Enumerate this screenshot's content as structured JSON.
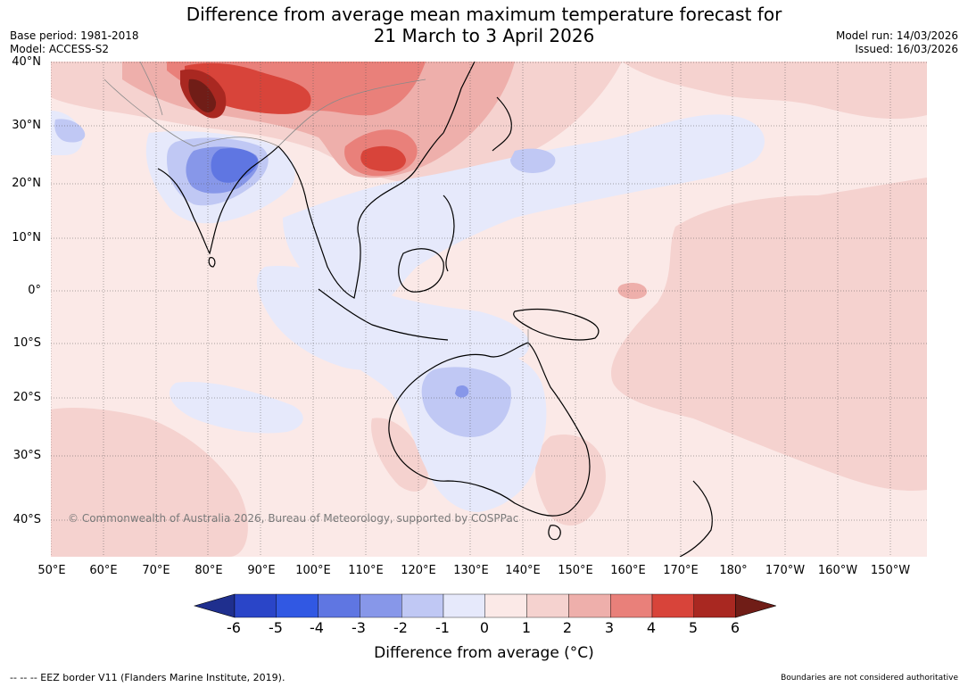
{
  "title_line1": "Difference from average mean maximum temperature forecast for",
  "title_line2": "21 March to 3 April 2026",
  "base_period": "Base period: 1981-2018",
  "model": "Model: ACCESS-S2",
  "model_run": "Model run: 14/03/2026",
  "issued": "Issued: 16/03/2026",
  "copyright": "© Commonwealth of Australia 2026, Bureau of Meteorology, supported by COSPPac",
  "lat_labels": [
    "40°N",
    "30°N",
    "20°N",
    "10°N",
    "0°",
    "10°S",
    "20°S",
    "30°S",
    "40°S"
  ],
  "lon_labels": [
    "50°E",
    "60°E",
    "70°E",
    "80°E",
    "90°E",
    "100°E",
    "110°E",
    "120°E",
    "130°E",
    "140°E",
    "150°E",
    "160°E",
    "170°E",
    "180°",
    "170°W",
    "160°W",
    "150°W"
  ],
  "colorbar": {
    "ticks": [
      "-6",
      "-5",
      "-4",
      "-3",
      "-2",
      "-1",
      "0",
      "1",
      "2",
      "3",
      "4",
      "5",
      "6"
    ],
    "colors": [
      "#1f2f8e",
      "#2a45c8",
      "#3158e3",
      "#5f76e2",
      "#8797e9",
      "#c0c8f4",
      "#e6e9fb",
      "#fbe9e7",
      "#f5d2cf",
      "#eeafab",
      "#e9807a",
      "#d8443a",
      "#a92821",
      "#701d17"
    ],
    "label": "Difference from average (°C)"
  },
  "footer_left": "--  --  -- EEZ border V11 (Flanders Marine Institute, 2019).",
  "footer_right": "Boundaries are not considered authoritative"
}
